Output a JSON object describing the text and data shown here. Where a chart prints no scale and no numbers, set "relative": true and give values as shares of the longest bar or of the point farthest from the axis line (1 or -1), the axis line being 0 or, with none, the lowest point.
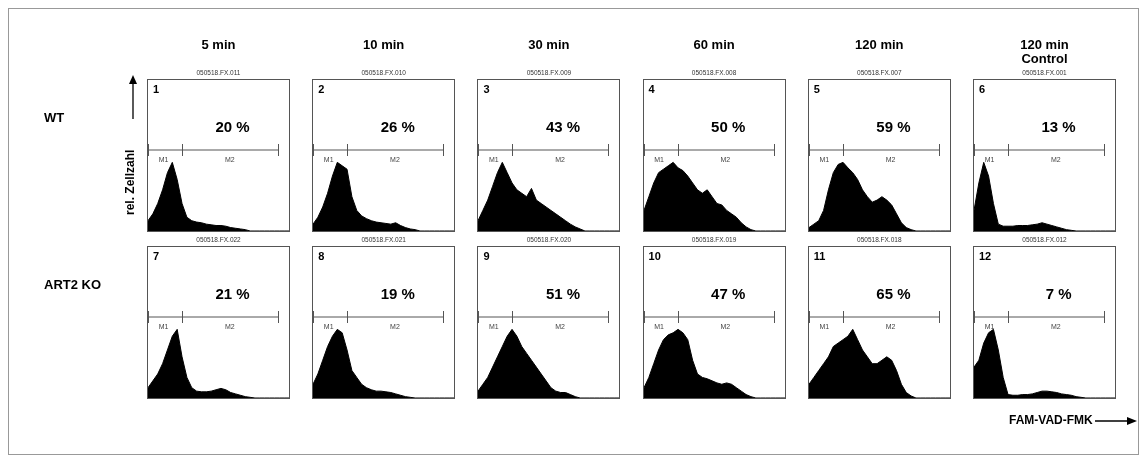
{
  "chart_data": [
    {
      "type": "area",
      "relative": true,
      "title": "5 min",
      "ylabel": "rel. Zellzahl",
      "color": "#000000",
      "categories": [
        null,
        null,
        null,
        null,
        null,
        null,
        null,
        null,
        null,
        null,
        null,
        null,
        null,
        null,
        null,
        null,
        null,
        null,
        null,
        null,
        null,
        null,
        null,
        null,
        null,
        null,
        null,
        null,
        null,
        null
      ],
      "values": [
        0.15,
        0.25,
        0.4,
        0.6,
        0.85,
        1.0,
        0.75,
        0.4,
        0.2,
        0.15,
        0.13,
        0.12,
        0.1,
        0.09,
        0.08,
        0.08,
        0.07,
        0.05,
        0.04,
        0.03,
        0.02,
        0,
        0,
        0,
        0,
        0,
        0,
        0,
        0,
        0
      ],
      "annotations": [
        "1",
        "20 %",
        "M1",
        "M2",
        "050518.FX.011",
        "WT"
      ]
    },
    {
      "type": "area",
      "relative": true,
      "title": "10 min",
      "color": "#000000",
      "categories": [
        null,
        null,
        null,
        null,
        null,
        null,
        null,
        null,
        null,
        null,
        null,
        null,
        null,
        null,
        null,
        null,
        null,
        null,
        null,
        null,
        null,
        null,
        null,
        null,
        null,
        null,
        null,
        null,
        null,
        null
      ],
      "values": [
        0.1,
        0.2,
        0.35,
        0.55,
        0.8,
        1.0,
        0.95,
        0.9,
        0.5,
        0.3,
        0.22,
        0.18,
        0.15,
        0.13,
        0.12,
        0.11,
        0.1,
        0.12,
        0.08,
        0.05,
        0.03,
        0.02,
        0,
        0,
        0,
        0,
        0,
        0,
        0,
        0
      ],
      "annotations": [
        "2",
        "26 %",
        "M1",
        "M2",
        "050518.FX.010"
      ]
    },
    {
      "type": "area",
      "relative": true,
      "title": "30 min",
      "color": "#000000",
      "categories": [
        null,
        null,
        null,
        null,
        null,
        null,
        null,
        null,
        null,
        null,
        null,
        null,
        null,
        null,
        null,
        null,
        null,
        null,
        null,
        null,
        null,
        null,
        null,
        null,
        null,
        null,
        null,
        null,
        null,
        null
      ],
      "values": [
        0.15,
        0.3,
        0.45,
        0.65,
        0.85,
        1.0,
        0.85,
        0.7,
        0.6,
        0.55,
        0.5,
        0.62,
        0.45,
        0.4,
        0.35,
        0.3,
        0.25,
        0.2,
        0.15,
        0.1,
        0.06,
        0.03,
        0,
        0,
        0,
        0,
        0,
        0,
        0,
        0
      ],
      "annotations": [
        "3",
        "43 %",
        "M1",
        "M2",
        "050518.FX.009"
      ]
    },
    {
      "type": "area",
      "relative": true,
      "title": "60 min",
      "color": "#000000",
      "categories": [
        null,
        null,
        null,
        null,
        null,
        null,
        null,
        null,
        null,
        null,
        null,
        null,
        null,
        null,
        null,
        null,
        null,
        null,
        null,
        null,
        null,
        null,
        null,
        null,
        null,
        null,
        null,
        null,
        null,
        null
      ],
      "values": [
        0.3,
        0.5,
        0.7,
        0.85,
        0.9,
        0.95,
        1.0,
        0.92,
        0.88,
        0.8,
        0.7,
        0.6,
        0.55,
        0.6,
        0.5,
        0.4,
        0.38,
        0.3,
        0.25,
        0.2,
        0.12,
        0.06,
        0.02,
        0,
        0,
        0,
        0,
        0,
        0,
        0
      ],
      "annotations": [
        "4",
        "50 %",
        "M1",
        "M2",
        "050518.FX.008"
      ]
    },
    {
      "type": "area",
      "relative": true,
      "title": "120 min",
      "color": "#000000",
      "categories": [
        null,
        null,
        null,
        null,
        null,
        null,
        null,
        null,
        null,
        null,
        null,
        null,
        null,
        null,
        null,
        null,
        null,
        null,
        null,
        null,
        null,
        null,
        null,
        null,
        null,
        null,
        null,
        null,
        null,
        null
      ],
      "values": [
        0.05,
        0.1,
        0.15,
        0.3,
        0.6,
        0.85,
        0.97,
        1.0,
        0.92,
        0.85,
        0.75,
        0.6,
        0.5,
        0.42,
        0.45,
        0.5,
        0.45,
        0.38,
        0.25,
        0.12,
        0.05,
        0.02,
        0,
        0,
        0,
        0,
        0,
        0,
        0,
        0
      ],
      "annotations": [
        "5",
        "59 %",
        "M1",
        "M2",
        "050518.FX.007"
      ]
    },
    {
      "type": "area",
      "relative": true,
      "title": "120 min\nControl",
      "color": "#000000",
      "categories": [
        null,
        null,
        null,
        null,
        null,
        null,
        null,
        null,
        null,
        null,
        null,
        null,
        null,
        null,
        null,
        null,
        null,
        null,
        null,
        null,
        null,
        null,
        null,
        null,
        null,
        null,
        null,
        null,
        null,
        null
      ],
      "values": [
        0.3,
        0.7,
        1.0,
        0.8,
        0.4,
        0.1,
        0.07,
        0.07,
        0.07,
        0.08,
        0.08,
        0.08,
        0.09,
        0.1,
        0.12,
        0.1,
        0.08,
        0.06,
        0.04,
        0.02,
        0.01,
        0,
        0,
        0,
        0,
        0,
        0,
        0,
        0,
        0
      ],
      "annotations": [
        "6",
        "13 %",
        "M1",
        "M2",
        "050518.FX.001"
      ]
    },
    {
      "type": "area",
      "relative": true,
      "color": "#000000",
      "categories": [
        null,
        null,
        null,
        null,
        null,
        null,
        null,
        null,
        null,
        null,
        null,
        null,
        null,
        null,
        null,
        null,
        null,
        null,
        null,
        null,
        null,
        null,
        null,
        null,
        null,
        null,
        null,
        null,
        null,
        null
      ],
      "values": [
        0.15,
        0.25,
        0.35,
        0.5,
        0.7,
        0.9,
        1.0,
        0.6,
        0.3,
        0.15,
        0.1,
        0.09,
        0.09,
        0.1,
        0.12,
        0.14,
        0.12,
        0.08,
        0.06,
        0.04,
        0.02,
        0.01,
        0,
        0,
        0,
        0,
        0,
        0,
        0,
        0
      ],
      "annotations": [
        "7",
        "21 %",
        "M1",
        "M2",
        "050518.FX.022",
        "ART2 KO"
      ]
    },
    {
      "type": "area",
      "relative": true,
      "color": "#000000",
      "categories": [
        null,
        null,
        null,
        null,
        null,
        null,
        null,
        null,
        null,
        null,
        null,
        null,
        null,
        null,
        null,
        null,
        null,
        null,
        null,
        null,
        null,
        null,
        null,
        null,
        null,
        null,
        null,
        null,
        null,
        null
      ],
      "values": [
        0.2,
        0.35,
        0.55,
        0.75,
        0.9,
        1.0,
        0.95,
        0.7,
        0.4,
        0.3,
        0.2,
        0.15,
        0.12,
        0.1,
        0.1,
        0.09,
        0.08,
        0.06,
        0.04,
        0.02,
        0.01,
        0,
        0,
        0,
        0,
        0,
        0,
        0,
        0,
        0
      ],
      "annotations": [
        "8",
        "19 %",
        "M1",
        "M2",
        "050518.FX.021"
      ]
    },
    {
      "type": "area",
      "relative": true,
      "color": "#000000",
      "categories": [
        null,
        null,
        null,
        null,
        null,
        null,
        null,
        null,
        null,
        null,
        null,
        null,
        null,
        null,
        null,
        null,
        null,
        null,
        null,
        null,
        null,
        null,
        null,
        null,
        null,
        null,
        null,
        null,
        null,
        null
      ],
      "values": [
        0.1,
        0.2,
        0.3,
        0.45,
        0.6,
        0.75,
        0.9,
        1.0,
        0.9,
        0.75,
        0.65,
        0.55,
        0.45,
        0.35,
        0.25,
        0.15,
        0.1,
        0.08,
        0.08,
        0.05,
        0.02,
        0,
        0,
        0,
        0,
        0,
        0,
        0,
        0,
        0
      ],
      "annotations": [
        "9",
        "51 %",
        "M1",
        "M2",
        "050518.FX.020"
      ]
    },
    {
      "type": "area",
      "relative": true,
      "color": "#000000",
      "categories": [
        null,
        null,
        null,
        null,
        null,
        null,
        null,
        null,
        null,
        null,
        null,
        null,
        null,
        null,
        null,
        null,
        null,
        null,
        null,
        null,
        null,
        null,
        null,
        null,
        null,
        null,
        null,
        null,
        null,
        null
      ],
      "values": [
        0.15,
        0.3,
        0.5,
        0.7,
        0.85,
        0.92,
        0.95,
        1.0,
        0.95,
        0.85,
        0.55,
        0.35,
        0.3,
        0.28,
        0.25,
        0.22,
        0.2,
        0.22,
        0.2,
        0.15,
        0.1,
        0.05,
        0.02,
        0,
        0,
        0,
        0,
        0,
        0,
        0
      ],
      "annotations": [
        "10",
        "47 %",
        "M1",
        "M2",
        "050518.FX.019"
      ]
    },
    {
      "type": "area",
      "relative": true,
      "color": "#000000",
      "categories": [
        null,
        null,
        null,
        null,
        null,
        null,
        null,
        null,
        null,
        null,
        null,
        null,
        null,
        null,
        null,
        null,
        null,
        null,
        null,
        null,
        null,
        null,
        null,
        null,
        null,
        null,
        null,
        null,
        null,
        null
      ],
      "values": [
        0.2,
        0.3,
        0.4,
        0.5,
        0.6,
        0.75,
        0.8,
        0.85,
        0.9,
        1.0,
        0.85,
        0.7,
        0.6,
        0.5,
        0.5,
        0.55,
        0.6,
        0.55,
        0.4,
        0.2,
        0.08,
        0.03,
        0,
        0,
        0,
        0,
        0,
        0,
        0,
        0
      ],
      "annotations": [
        "11",
        "65 %",
        "M1",
        "M2",
        "050518.FX.018"
      ]
    },
    {
      "type": "area",
      "relative": true,
      "xlabel": "FAM-VAD-FMK",
      "color": "#000000",
      "categories": [
        null,
        null,
        null,
        null,
        null,
        null,
        null,
        null,
        null,
        null,
        null,
        null,
        null,
        null,
        null,
        null,
        null,
        null,
        null,
        null,
        null,
        null,
        null,
        null,
        null,
        null,
        null,
        null,
        null,
        null
      ],
      "values": [
        0.45,
        0.55,
        0.8,
        0.95,
        1.0,
        0.7,
        0.3,
        0.05,
        0.04,
        0.04,
        0.05,
        0.05,
        0.06,
        0.08,
        0.1,
        0.1,
        0.09,
        0.08,
        0.06,
        0.05,
        0.04,
        0.02,
        0.01,
        0,
        0,
        0,
        0,
        0,
        0,
        0
      ],
      "annotations": [
        "12",
        "7 %",
        "M1",
        "M2",
        "050518.FX.012"
      ]
    }
  ]
}
